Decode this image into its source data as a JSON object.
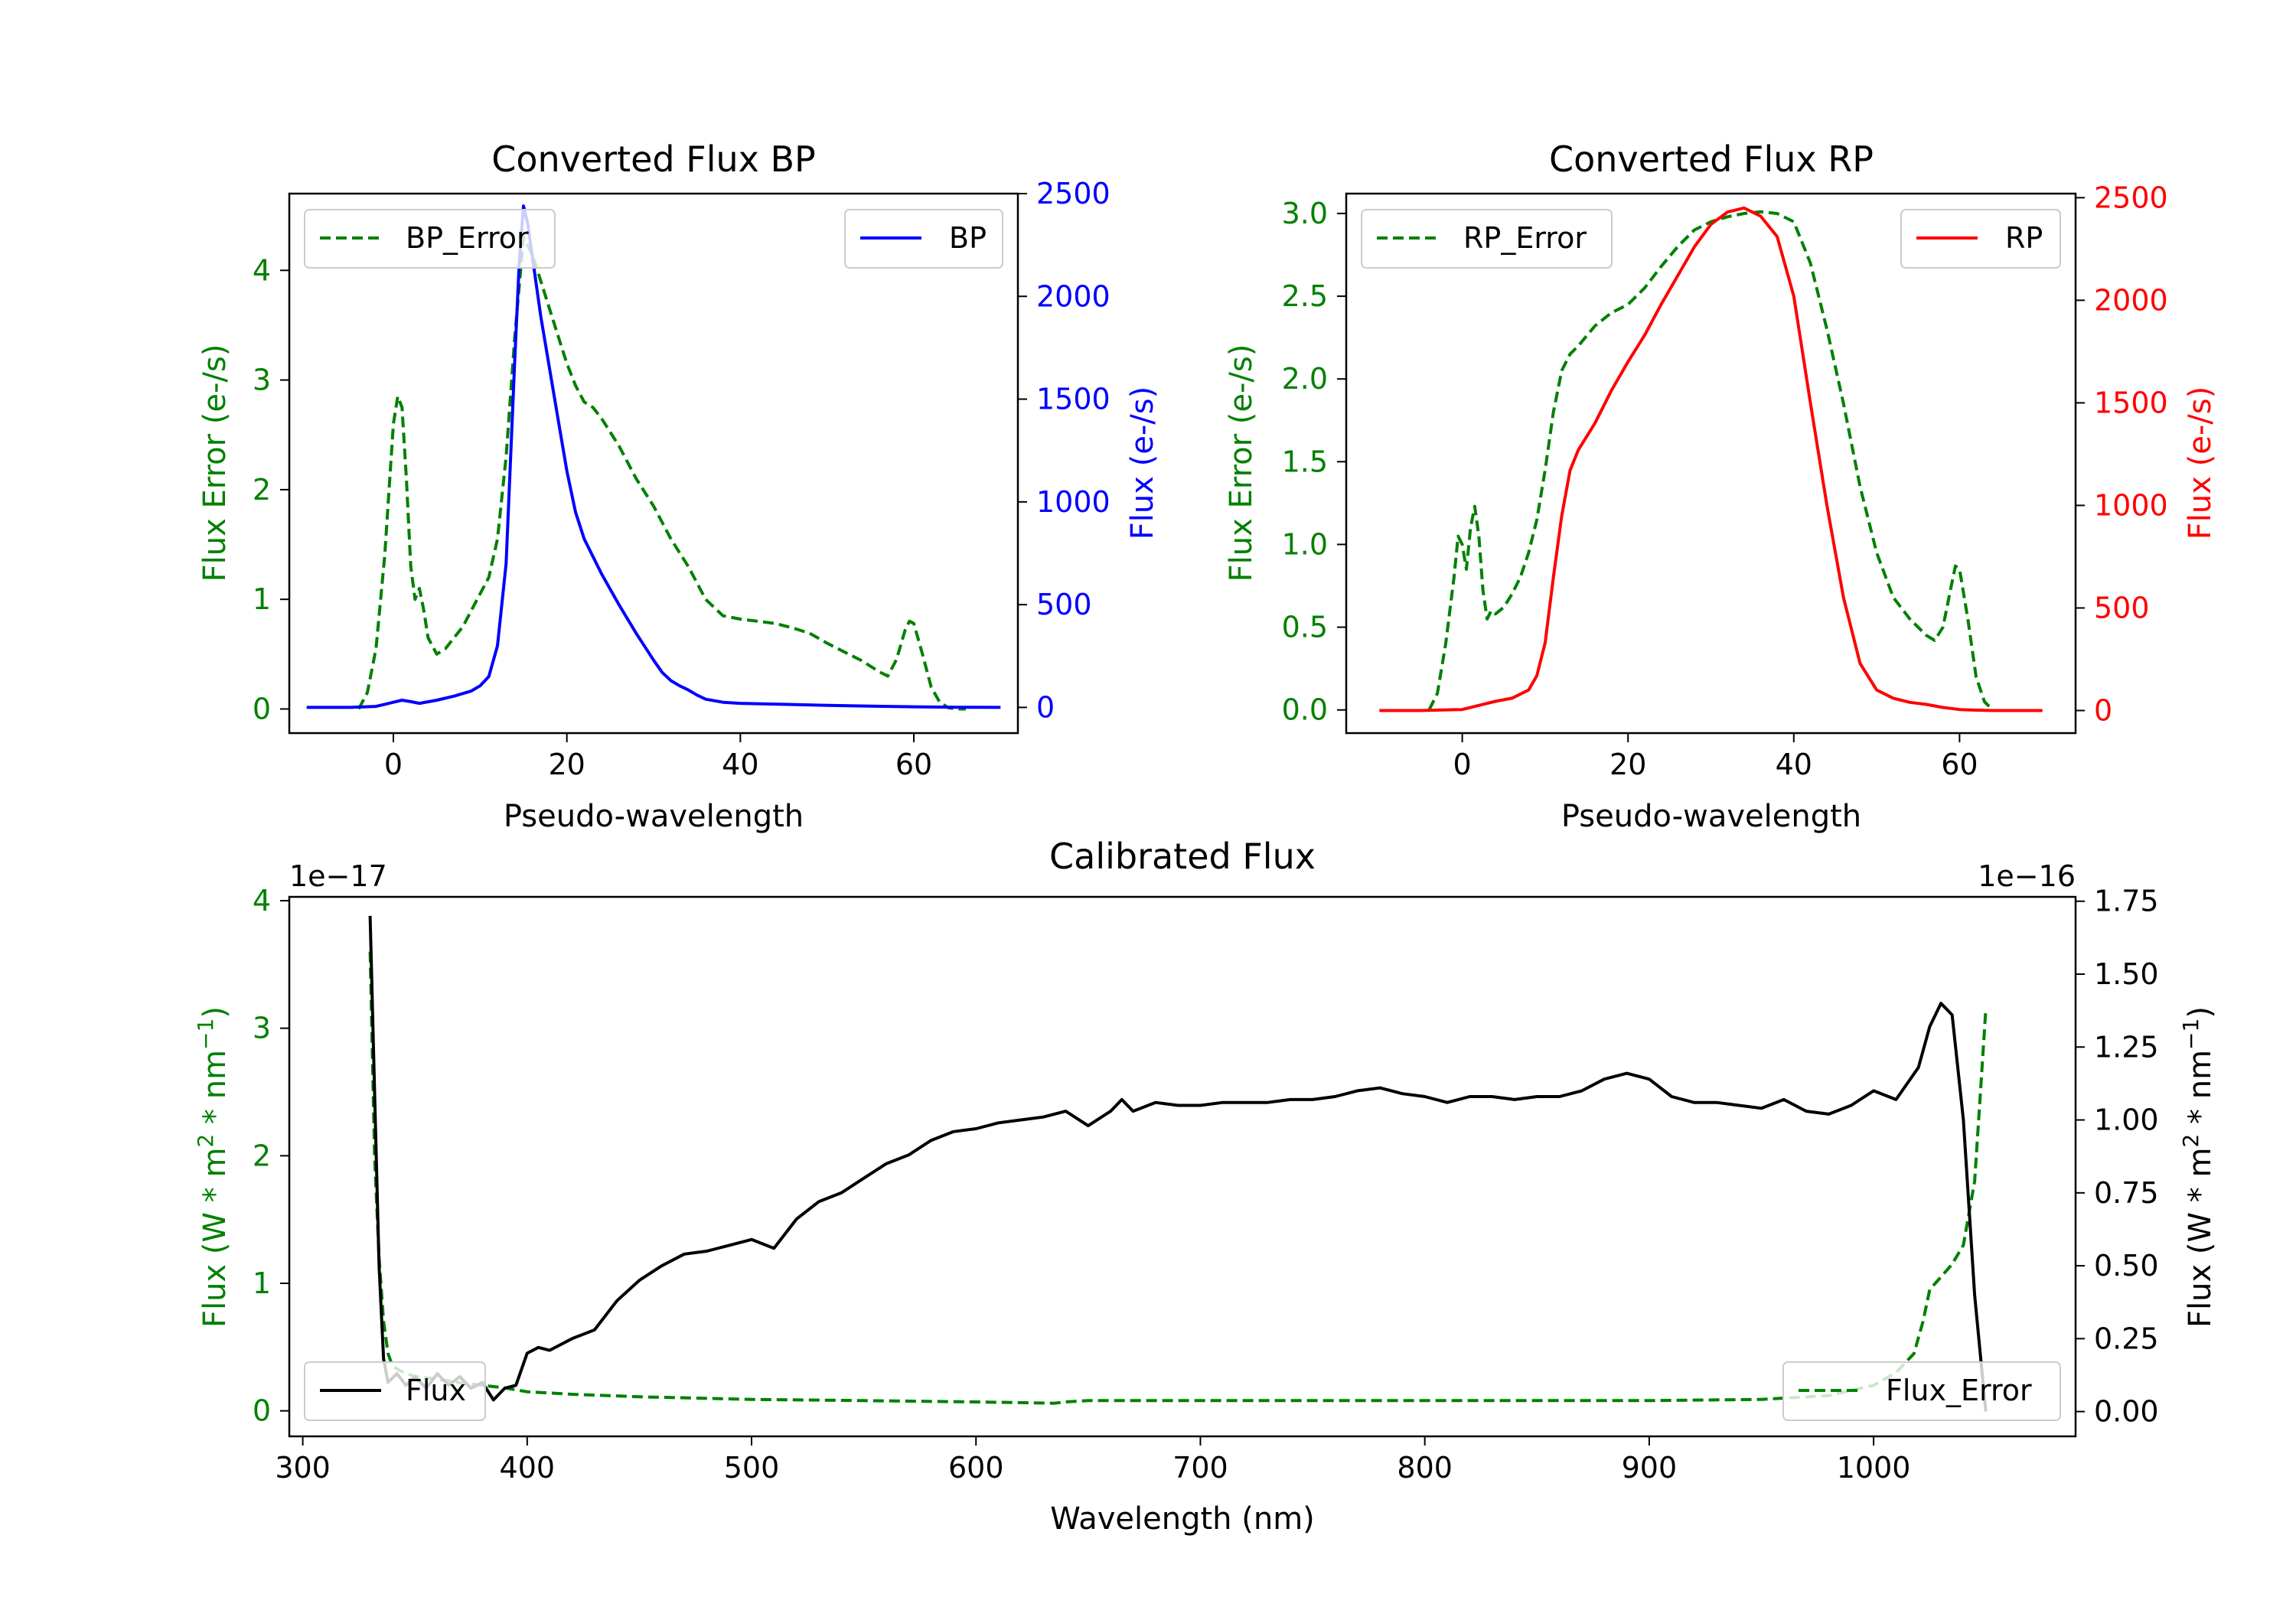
{
  "colors": {
    "error": "#008000",
    "bp": "#0000ff",
    "rp": "#ff0000",
    "flux": "#000000"
  },
  "chart_data": [
    {
      "id": "bp",
      "type": "line",
      "title": "Converted Flux BP",
      "xlabel": "Pseudo-wavelength",
      "ylabel_left": "Flux Error (e-/s)",
      "ylabel_right": "Flux (e-/s)",
      "xlim": [
        -12,
        72
      ],
      "ylim_left": [
        -0.22,
        4.7
      ],
      "ylim_right": [
        -125,
        2500
      ],
      "x_ticks": [
        0,
        20,
        40,
        60
      ],
      "x_tick_labels": [
        "0",
        "20",
        "40",
        "60"
      ],
      "y_left_ticks": [
        0,
        1,
        2,
        3,
        4
      ],
      "y_left_tick_labels": [
        "0",
        "1",
        "2",
        "3",
        "4"
      ],
      "y_right_ticks": [
        0,
        500,
        1000,
        1500,
        2000,
        2500
      ],
      "y_right_tick_labels": [
        "0",
        "500",
        "1000",
        "1500",
        "2000",
        "2500"
      ],
      "legend_left": "BP_Error",
      "legend_right": "BP",
      "series": [
        {
          "name": "BP_Error",
          "axis": "left",
          "style": "dashed",
          "x": [
            -4,
            -3,
            -2,
            -1,
            0,
            0.5,
            1,
            1.5,
            2,
            2.5,
            3,
            3.5,
            4,
            5,
            6,
            7,
            8,
            10,
            11,
            12,
            13,
            14,
            15,
            16,
            17,
            18,
            19,
            20,
            21,
            22,
            23,
            24,
            26,
            28,
            30,
            32,
            34,
            36,
            38,
            40,
            42,
            44,
            46,
            48,
            50,
            52,
            54,
            56,
            57,
            58,
            59,
            59.5,
            60,
            61,
            62,
            63,
            64,
            65,
            66
          ],
          "y": [
            0,
            0.15,
            0.55,
            1.4,
            2.6,
            2.85,
            2.75,
            2.1,
            1.3,
            1.0,
            1.1,
            0.9,
            0.65,
            0.5,
            0.55,
            0.65,
            0.75,
            1.05,
            1.2,
            1.55,
            2.3,
            3.4,
            4.3,
            4.15,
            3.9,
            3.65,
            3.4,
            3.15,
            2.95,
            2.8,
            2.75,
            2.65,
            2.4,
            2.1,
            1.85,
            1.55,
            1.3,
            1.0,
            0.85,
            0.82,
            0.8,
            0.78,
            0.74,
            0.69,
            0.6,
            0.52,
            0.44,
            0.34,
            0.3,
            0.45,
            0.72,
            0.8,
            0.78,
            0.5,
            0.2,
            0.06,
            0.01,
            0,
            0
          ]
        },
        {
          "name": "BP",
          "axis": "right",
          "style": "solid",
          "x": [
            -10,
            -5,
            -2,
            0,
            1,
            2,
            3,
            5,
            7,
            9,
            10,
            11,
            12,
            13,
            13.5,
            14,
            14.5,
            15,
            15.5,
            16,
            16.5,
            17,
            18,
            19,
            20,
            21,
            22,
            24,
            26,
            28,
            30,
            31,
            32,
            33,
            34,
            35,
            36,
            38,
            40,
            45,
            50,
            55,
            60,
            65,
            70
          ],
          "y": [
            0,
            0,
            5,
            25,
            35,
            28,
            20,
            35,
            55,
            80,
            105,
            150,
            300,
            700,
            1200,
            1700,
            2150,
            2440,
            2350,
            2200,
            2050,
            1900,
            1650,
            1400,
            1150,
            950,
            820,
            650,
            500,
            360,
            230,
            170,
            130,
            105,
            85,
            60,
            40,
            25,
            20,
            15,
            10,
            6,
            3,
            1,
            0
          ]
        }
      ]
    },
    {
      "id": "rp",
      "type": "line",
      "title": "Converted Flux RP",
      "xlabel": "Pseudo-wavelength",
      "ylabel_left": "Flux Error (e-/s)",
      "ylabel_right": "Flux (e-/s)",
      "xlim": [
        -14,
        74
      ],
      "ylim_left": [
        -0.14,
        3.12
      ],
      "ylim_right": [
        -110,
        2520
      ],
      "x_ticks": [
        0,
        20,
        40,
        60
      ],
      "x_tick_labels": [
        "0",
        "20",
        "40",
        "60"
      ],
      "y_left_ticks": [
        0,
        0.5,
        1,
        1.5,
        2,
        2.5,
        3
      ],
      "y_left_tick_labels": [
        "0.0",
        "0.5",
        "1.0",
        "1.5",
        "2.0",
        "2.5",
        "3.0"
      ],
      "y_right_ticks": [
        0,
        500,
        1000,
        1500,
        2000,
        2500
      ],
      "y_right_tick_labels": [
        "0",
        "500",
        "1000",
        "1500",
        "2000",
        "2500"
      ],
      "legend_left": "RP_Error",
      "legend_right": "RP",
      "series": [
        {
          "name": "RP_Error",
          "axis": "left",
          "style": "dashed",
          "x": [
            -4,
            -3,
            -2,
            -1,
            -0.5,
            0,
            0.5,
            1,
            1.5,
            2,
            2.5,
            3,
            3.5,
            4,
            5,
            6,
            7,
            8,
            9,
            10,
            11,
            12,
            13,
            14,
            16,
            18,
            20,
            22,
            24,
            26,
            28,
            30,
            32,
            34,
            36,
            38,
            40,
            42,
            44,
            46,
            48,
            50,
            52,
            54,
            55,
            56,
            57,
            58,
            59,
            59.5,
            60,
            61,
            62,
            63,
            64
          ],
          "y": [
            0,
            0.1,
            0.4,
            0.8,
            1.05,
            1.0,
            0.85,
            1.1,
            1.23,
            1.05,
            0.72,
            0.55,
            0.6,
            0.58,
            0.62,
            0.7,
            0.8,
            0.95,
            1.15,
            1.45,
            1.8,
            2.05,
            2.15,
            2.2,
            2.32,
            2.4,
            2.45,
            2.55,
            2.68,
            2.8,
            2.9,
            2.95,
            2.98,
            3.0,
            3.01,
            3.0,
            2.95,
            2.7,
            2.3,
            1.85,
            1.35,
            0.95,
            0.68,
            0.55,
            0.5,
            0.45,
            0.42,
            0.5,
            0.75,
            0.87,
            0.85,
            0.55,
            0.2,
            0.05,
            0
          ]
        },
        {
          "name": "RP",
          "axis": "right",
          "style": "solid",
          "x": [
            -10,
            -5,
            0,
            2,
            4,
            6,
            8,
            9,
            10,
            11,
            12,
            13,
            14,
            16,
            18,
            20,
            22,
            24,
            26,
            28,
            30,
            32,
            34,
            35,
            36,
            38,
            40,
            42,
            44,
            46,
            48,
            50,
            52,
            54,
            56,
            58,
            60,
            62,
            64,
            66,
            70
          ],
          "y": [
            0,
            0,
            5,
            25,
            45,
            60,
            100,
            170,
            330,
            650,
            950,
            1170,
            1270,
            1400,
            1560,
            1700,
            1830,
            1980,
            2120,
            2260,
            2370,
            2430,
            2450,
            2430,
            2410,
            2310,
            2020,
            1500,
            1000,
            550,
            230,
            100,
            60,
            40,
            30,
            15,
            5,
            2,
            0,
            0,
            0
          ]
        }
      ]
    },
    {
      "id": "calibrated",
      "type": "line",
      "title": "Calibrated Flux",
      "xlabel": "Wavelength (nm)",
      "ylabel_left": "Flux (W * m^2 * nm^-1)",
      "ylabel_right": "Flux (W * m^2 * nm^-1)",
      "offset_left": "1e−17",
      "offset_right": "1e−16",
      "xlim": [
        294,
        1090
      ],
      "ylim_left": [
        -0.2,
        4.03
      ],
      "ylim_right": [
        -0.085,
        1.765
      ],
      "x_ticks": [
        300,
        400,
        500,
        600,
        700,
        800,
        900,
        1000
      ],
      "x_tick_labels": [
        "300",
        "400",
        "500",
        "600",
        "700",
        "800",
        "900",
        "1000"
      ],
      "y_left_ticks": [
        0,
        1,
        2,
        3,
        4
      ],
      "y_left_tick_labels": [
        "0",
        "1",
        "2",
        "3",
        "4"
      ],
      "y_right_ticks": [
        0,
        0.25,
        0.5,
        0.75,
        1.0,
        1.25,
        1.5,
        1.75
      ],
      "y_right_tick_labels": [
        "0.00",
        "0.25",
        "0.50",
        "0.75",
        "1.00",
        "1.25",
        "1.50",
        "1.75"
      ],
      "legend_left": "Flux",
      "legend_right": "Flux_Error",
      "series": [
        {
          "name": "Flux_Error",
          "axis": "left",
          "style": "dashed",
          "x": [
            330,
            332,
            334,
            336,
            338,
            340,
            345,
            350,
            360,
            370,
            380,
            390,
            400,
            420,
            450,
            500,
            550,
            600,
            635,
            640,
            650,
            700,
            800,
            900,
            950,
            980,
            1000,
            1010,
            1018,
            1022,
            1025,
            1030,
            1035,
            1040,
            1045,
            1048,
            1050
          ],
          "y": [
            3.6,
            2.0,
            1.2,
            0.7,
            0.45,
            0.35,
            0.3,
            0.27,
            0.25,
            0.22,
            0.2,
            0.18,
            0.15,
            0.13,
            0.11,
            0.09,
            0.08,
            0.07,
            0.06,
            0.07,
            0.08,
            0.08,
            0.08,
            0.08,
            0.09,
            0.12,
            0.2,
            0.3,
            0.45,
            0.7,
            0.95,
            1.05,
            1.15,
            1.3,
            1.8,
            2.6,
            3.15
          ]
        },
        {
          "name": "Flux",
          "axis": "right",
          "style": "solid",
          "x": [
            330,
            332,
            334,
            336,
            338,
            342,
            346,
            350,
            355,
            360,
            365,
            370,
            375,
            380,
            385,
            390,
            395,
            400,
            405,
            410,
            420,
            430,
            440,
            450,
            460,
            470,
            480,
            490,
            500,
            510,
            520,
            530,
            540,
            550,
            560,
            570,
            580,
            590,
            600,
            610,
            620,
            630,
            640,
            650,
            660,
            665,
            670,
            680,
            690,
            700,
            710,
            720,
            730,
            740,
            750,
            760,
            770,
            780,
            790,
            800,
            810,
            820,
            830,
            840,
            850,
            860,
            870,
            880,
            890,
            900,
            910,
            920,
            930,
            940,
            950,
            960,
            970,
            980,
            990,
            1000,
            1010,
            1020,
            1025,
            1030,
            1035,
            1040,
            1045,
            1050
          ],
          "y": [
            1.7,
            1.1,
            0.5,
            0.18,
            0.1,
            0.13,
            0.09,
            0.12,
            0.08,
            0.13,
            0.09,
            0.12,
            0.08,
            0.1,
            0.04,
            0.08,
            0.09,
            0.2,
            0.22,
            0.21,
            0.25,
            0.28,
            0.38,
            0.45,
            0.5,
            0.54,
            0.55,
            0.57,
            0.59,
            0.56,
            0.66,
            0.72,
            0.75,
            0.8,
            0.85,
            0.88,
            0.93,
            0.96,
            0.97,
            0.99,
            1.0,
            1.01,
            1.03,
            0.98,
            1.03,
            1.07,
            1.03,
            1.06,
            1.05,
            1.05,
            1.06,
            1.06,
            1.06,
            1.07,
            1.07,
            1.08,
            1.1,
            1.11,
            1.09,
            1.08,
            1.06,
            1.08,
            1.08,
            1.07,
            1.08,
            1.08,
            1.1,
            1.14,
            1.16,
            1.14,
            1.08,
            1.06,
            1.06,
            1.05,
            1.04,
            1.07,
            1.03,
            1.02,
            1.05,
            1.1,
            1.07,
            1.18,
            1.32,
            1.4,
            1.36,
            1.0,
            0.4,
            0.0
          ]
        }
      ]
    }
  ]
}
